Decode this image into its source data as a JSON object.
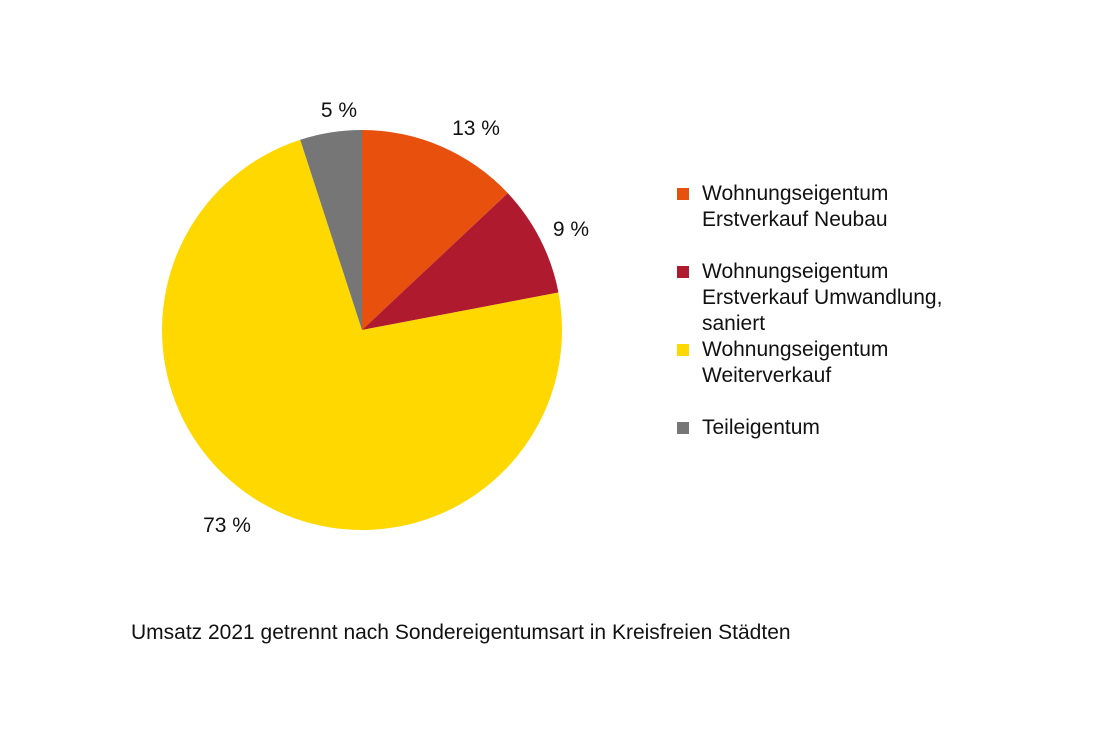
{
  "chart_data": {
    "type": "pie",
    "title": "Umsatz 2021 getrennt nach Sondereigentumsart in Kreisfreien Städten",
    "start": "12 o'clock",
    "direction": "clockwise",
    "legend_position": "right",
    "slices": [
      {
        "name_lines": [
          "Wohnungseigentum",
          "Erstverkauf Neubau"
        ],
        "value": 13,
        "label": "13 %",
        "color": "#E8500E"
      },
      {
        "name_lines": [
          "Wohnungseigentum",
          "Erstverkauf Umwandlung,",
          "saniert"
        ],
        "value": 9,
        "label": "9 %",
        "color": "#B01A2E"
      },
      {
        "name_lines": [
          "Wohnungseigentum",
          "Weiterverkauf"
        ],
        "value": 73,
        "label": "73 %",
        "color": "#FFD800"
      },
      {
        "name_lines": [
          "Teileigentum"
        ],
        "value": 5,
        "label": "5 %",
        "color": "#767676"
      }
    ]
  }
}
